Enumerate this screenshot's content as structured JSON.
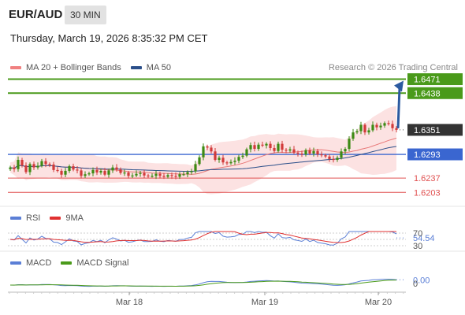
{
  "header": {
    "symbol": "EUR/AUD",
    "timeframe": "30 MIN",
    "datetime": "Thursday, March 19, 2026 8:35:32 PM CET"
  },
  "legend_main": [
    {
      "label": "MA 20 + Bollinger Bands",
      "color": "#f08080"
    },
    {
      "label": "MA 50",
      "color": "#2b4f8a"
    }
  ],
  "credit": "Research © 2026 Trading Central",
  "legend_rsi": [
    {
      "label": "RSI",
      "color": "#5b7fd6"
    },
    {
      "label": "9MA",
      "color": "#e03030"
    }
  ],
  "legend_macd": [
    {
      "label": "MACD",
      "color": "#5b7fd6"
    },
    {
      "label": "MACD Signal",
      "color": "#4a9a1a"
    }
  ],
  "colors": {
    "green_level": "#4a9a1a",
    "blue_level": "#3a66d0",
    "red_level": "#e05050",
    "bull_candle": "#3d8a14",
    "bear_candle": "#d23a3a",
    "band_fill": "#fbd8d8",
    "arrow": "#2b5aa0",
    "current_tag": "#333333"
  },
  "chart_data": [
    {
      "type": "candlestick",
      "title": "EUR/AUD 30 MIN",
      "price_range": [
        1.617,
        1.65
      ],
      "x_ticks": [
        "Mar 18",
        "Mar 19",
        "Mar 20"
      ],
      "current_price": "1.6351",
      "levels": [
        {
          "value": "1.6471",
          "kind": "target",
          "color": "#4a9a1a"
        },
        {
          "value": "1.6438",
          "kind": "resistance",
          "color": "#4a9a1a"
        },
        {
          "value": "1.6293",
          "kind": "pivot",
          "color": "#3a66d0"
        },
        {
          "value": "1.6237",
          "kind": "support",
          "color": "#e05050"
        },
        {
          "value": "1.6203",
          "kind": "support",
          "color": "#e05050"
        }
      ],
      "forecast": "upward arrow toward 1.6471",
      "close_series": [
        1.6262,
        1.6258,
        1.628,
        1.6267,
        1.6251,
        1.627,
        1.6262,
        1.6266,
        1.6277,
        1.627,
        1.6269,
        1.6256,
        1.6254,
        1.6245,
        1.6254,
        1.6265,
        1.6257,
        1.6255,
        1.6242,
        1.6246,
        1.6248,
        1.6256,
        1.625,
        1.6254,
        1.6245,
        1.6255,
        1.6262,
        1.6257,
        1.6249,
        1.625,
        1.6242,
        1.6243,
        1.6247,
        1.6249,
        1.6243,
        1.6242,
        1.6242,
        1.6247,
        1.6242,
        1.624,
        1.6244,
        1.6242,
        1.624,
        1.6246,
        1.6246,
        1.6251,
        1.6253,
        1.627,
        1.6286,
        1.6312,
        1.6309,
        1.63,
        1.628,
        1.6285,
        1.6274,
        1.6272,
        1.6275,
        1.6278,
        1.6287,
        1.629,
        1.6305,
        1.6315,
        1.6306,
        1.6316,
        1.6314,
        1.6318,
        1.6308,
        1.6301,
        1.6318,
        1.6304,
        1.6302,
        1.6305,
        1.6297,
        1.6295,
        1.6293,
        1.6303,
        1.6295,
        1.6301,
        1.6293,
        1.6291,
        1.6288,
        1.6282,
        1.628,
        1.6285,
        1.63,
        1.6306,
        1.633,
        1.6345,
        1.6348,
        1.6363,
        1.6345,
        1.635,
        1.6363,
        1.6357,
        1.6361,
        1.6367,
        1.6365,
        1.6355,
        1.6351
      ]
    },
    {
      "type": "line",
      "title": "RSI",
      "y_ticks": [
        30,
        54.54,
        70
      ],
      "current_value": "54.54",
      "series": [
        {
          "name": "RSI"
        },
        {
          "name": "9MA"
        }
      ]
    },
    {
      "type": "line",
      "title": "MACD",
      "y_ticks": [
        0
      ],
      "current_value": "0.00",
      "series": [
        {
          "name": "MACD"
        },
        {
          "name": "MACD Signal"
        }
      ]
    }
  ]
}
